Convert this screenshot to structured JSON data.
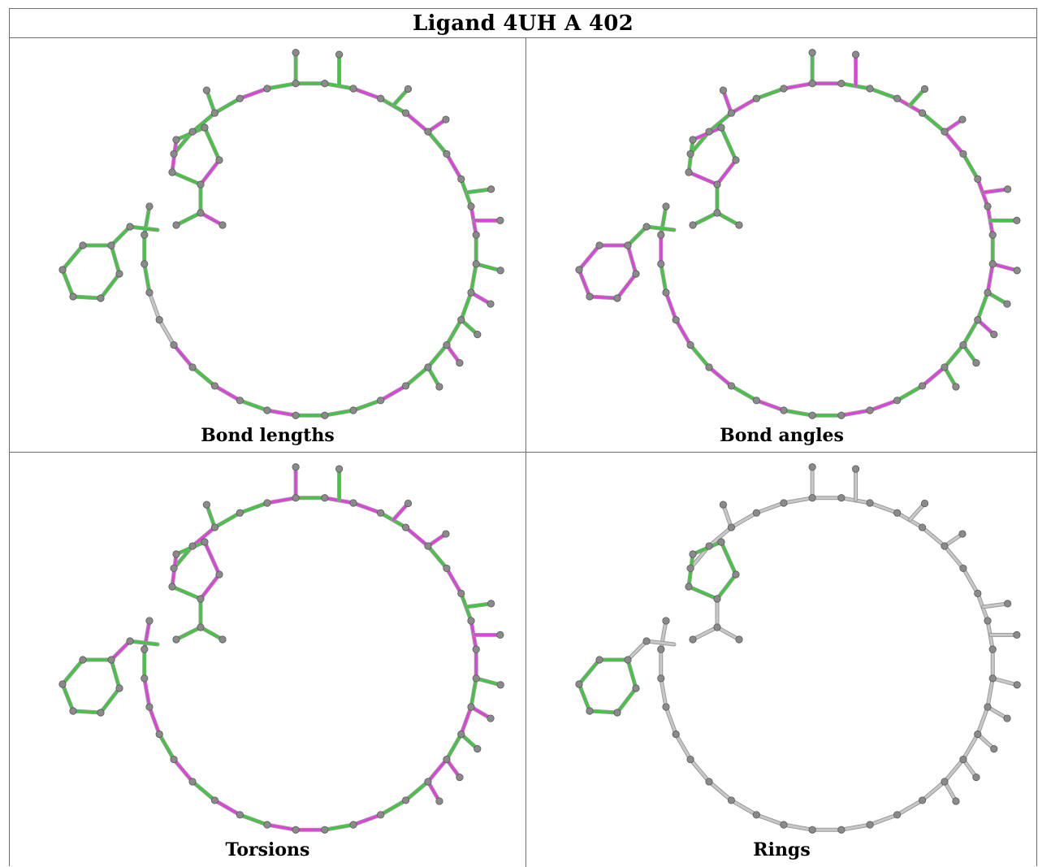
{
  "title": "Ligand 4UH A 402",
  "panels": [
    {
      "caption": "Bond lengths",
      "highlight": [
        3,
        5,
        7,
        9,
        13
      ]
    },
    {
      "caption": "Bond angles",
      "highlight": [
        1,
        3,
        4,
        6,
        8,
        11,
        12,
        14
      ]
    },
    {
      "caption": "Torsions",
      "highlight": [
        0,
        2,
        3,
        5,
        7,
        9,
        10,
        12,
        15
      ]
    },
    {
      "caption": "Rings",
      "highlight": []
    }
  ],
  "colors": {
    "ok": "#3ec83e",
    "outlier": "#e23fe0",
    "neutral": "#c8c8c8",
    "atom": "#8a8a8a"
  }
}
